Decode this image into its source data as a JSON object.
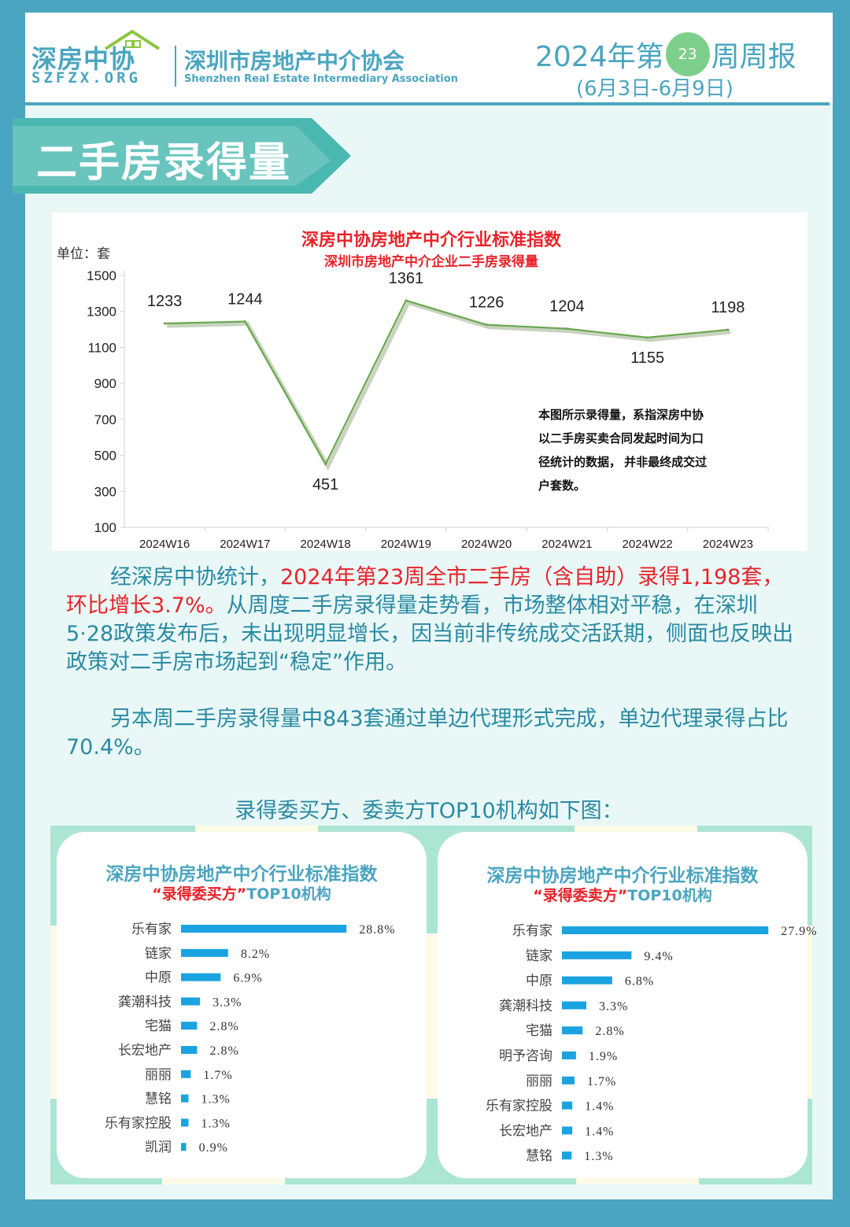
{
  "header": {
    "logo_cn": "深房中协",
    "logo_en": "SZFZX.ORG",
    "org_cn": "深圳市房地产中介协会",
    "org_en": "Shenzhen Real Estate Intermediary Association",
    "week_prefix": "2024年第",
    "week_number": "23",
    "week_suffix": "周周报",
    "date_range": "(6月3日-6月9日)"
  },
  "section_title": "二手房录得量",
  "colors": {
    "accent": "#4aa5c0",
    "line": "#6aa84f",
    "bar": "#1aa3e0",
    "red": "#e8232a",
    "teal_text": "#2a8aa3"
  },
  "chart_data": [
    {
      "type": "line",
      "title": "深房中协房地产中介行业标准指数",
      "subtitle": "深圳市房地产中介企业二手房录得量",
      "unit_label": "单位：套",
      "x": [
        "2024W16",
        "2024W17",
        "2024W18",
        "2024W19",
        "2024W20",
        "2024W21",
        "2024W22",
        "2024W23"
      ],
      "series": [
        {
          "values": [
            1233,
            1244,
            451,
            1361,
            1226,
            1204,
            1155,
            1198
          ]
        }
      ],
      "ylim": [
        100,
        1500
      ],
      "yticks": [
        100,
        300,
        500,
        700,
        900,
        1100,
        1300,
        1500
      ],
      "grid": false,
      "note": [
        "本图所示录得量，系指深房中协",
        "以二手房买卖合同发起时间为口",
        "径统计的数据， 并非最终成交过",
        "户套数。"
      ]
    },
    {
      "type": "bar",
      "title": "深房中协房地产中介行业标准指数",
      "subtitle_red": "“录得委买方”",
      "subtitle_rest": "TOP10机构",
      "categories": [
        "乐有家",
        "链家",
        "中原",
        "龚潮科技",
        "宅猫",
        "长宏地产",
        "丽丽",
        "慧铭",
        "乐有家控股",
        "凯润"
      ],
      "values": [
        28.8,
        8.2,
        6.9,
        3.3,
        2.8,
        2.8,
        1.7,
        1.3,
        1.3,
        0.9
      ],
      "value_labels": [
        "28.8%",
        "8.2%",
        "6.9%",
        "3.3%",
        "2.8%",
        "2.8%",
        "1.7%",
        "1.3%",
        "1.3%",
        "0.9%"
      ]
    },
    {
      "type": "bar",
      "title": "深房中协房地产中介行业标准指数",
      "subtitle_red": "“录得委卖方”",
      "subtitle_rest": "TOP10机构",
      "categories": [
        "乐有家",
        "链家",
        "中原",
        "龚潮科技",
        "宅猫",
        "明予咨询",
        "丽丽",
        "乐有家控股",
        "长宏地产",
        "慧铭"
      ],
      "values": [
        27.9,
        9.4,
        6.8,
        3.3,
        2.8,
        1.9,
        1.7,
        1.4,
        1.4,
        1.3
      ],
      "value_labels": [
        "27.9%",
        "9.4%",
        "6.8%",
        "3.3%",
        "2.8%",
        "1.9%",
        "1.7%",
        "1.4%",
        "1.4%",
        "1.3%"
      ]
    }
  ],
  "paragraph1": {
    "lead": "经深房中协统计，",
    "highlight": "2024年第23周全市二手房（含自助）录得1,198套，环比增长3.7%。",
    "rest": "从周度二手房录得量走势看，市场整体相对平稳，在深圳5·28政策发布后，未出现明显增长，因当前非传统成交活跃期，侧面也反映出政策对二手房市场起到“稳定”作用。"
  },
  "paragraph2": "另本周二手房录得量中843套通过单边代理形式完成，单边代理录得占比70.4%。",
  "top10_title": "录得委买方、委卖方TOP10机构如下图："
}
